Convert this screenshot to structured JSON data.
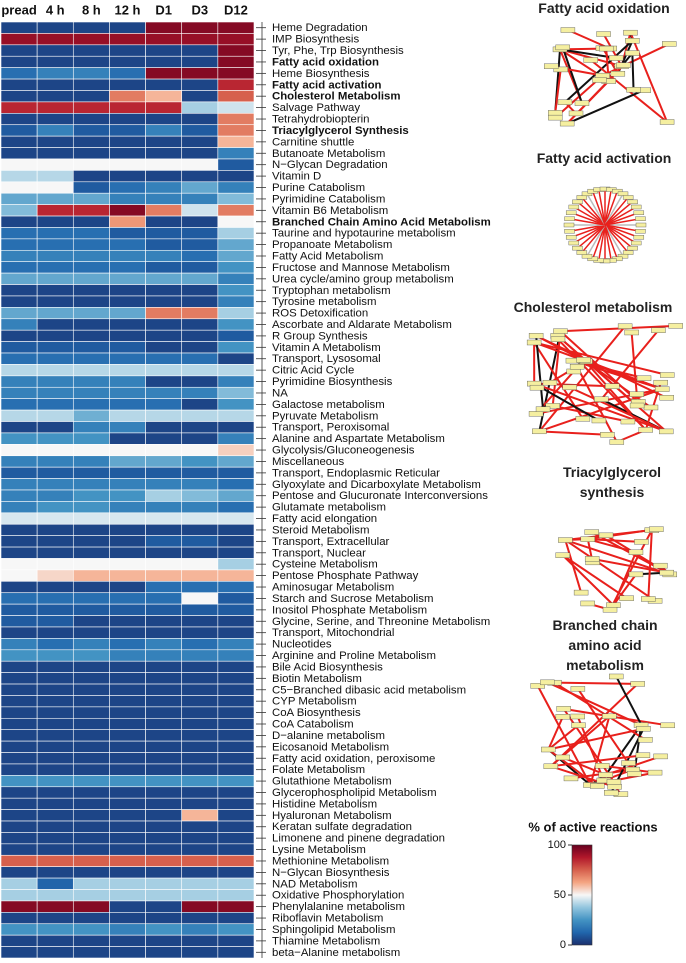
{
  "chart_data": {
    "type": "heatmap",
    "columns": [
      "pread",
      "4 h",
      "8 h",
      "12 h",
      "D1",
      "D3",
      "D12"
    ],
    "rows": [
      "Heme Degradation",
      "IMP Biosynthesis",
      "Tyr, Phe, Trp Biosynthesis",
      "Fatty acid oxidation",
      "Heme Biosynthesis",
      "Fatty acid activation",
      "Cholesterol Metabolism",
      "Salvage Pathway",
      "Tetrahydrobiopterin",
      "Triacylglycerol Synthesis",
      "Carnitine shuttle",
      "Butanoate Metabolism",
      "N−Glycan Degradation",
      "Vitamin D",
      "Purine Catabolism",
      "Pyrimidine Catabolism",
      "Vitamin B6 Metabolism",
      "Branched Chain Amino Acid Metabolism",
      "Taurine and hypotaurine metabolism",
      "Propanoate Metabolism",
      "Fatty Acid Metabolism",
      "Fructose and Mannose Metabolism",
      "Urea cycle/amino group metabolism",
      "Tryptophan metabolism",
      "Tyrosine metabolism",
      "ROS Detoxification",
      "Ascorbate and Aldarate Metabolism",
      "R Group Synthesis",
      "Vitamin A Metabolism",
      "Transport, Lysosomal",
      "Citric Acid Cycle",
      "Pyrimidine Biosynthesis",
      "NA",
      "Galactose metabolism",
      "Pyruvate Metabolism",
      "Transport, Peroxisomal",
      "Alanine and Aspartate Metabolism",
      "Glycolysis/Gluconeogenesis",
      "Miscellaneous",
      "Transport, Endoplasmic Reticular",
      "Glyoxylate and Dicarboxylate Metabolism",
      "Pentose and Glucuronate Interconversions",
      "Glutamate metabolism",
      "Fatty acid elongation",
      "Steroid Metabolism",
      "Transport, Extracellular",
      "Transport, Nuclear",
      "Cysteine Metabolism",
      "Pentose Phosphate Pathway",
      "Aminosugar Metabolism",
      "Starch and Sucrose Metabolism",
      "Inositol Phosphate Metabolism",
      "Glycine, Serine, and Threonine Metabolism",
      "Transport, Mitochondrial",
      "Nucleotides",
      "Arginine and Proline Metabolism",
      "Bile Acid Biosynthesis",
      "Biotin Metabolism",
      "C5−Branched dibasic acid metabolism",
      "CYP Metabolism",
      "CoA Biosynthesis",
      "CoA Catabolism",
      "D−alanine metabolism",
      "Eicosanoid Metabolism",
      "Fatty acid oxidation, peroxisome",
      "Folate Metabolism",
      "Glutathione Metabolism",
      "Glycerophospholipid Metabolism",
      "Histidine Metabolism",
      "Hyaluronan Metabolism",
      "Keratan sulfate degradation",
      "Limonene and pinene degradation",
      "Lysine Metabolism",
      "Methionine Metabolism",
      "N−Glycan Biosynthesis",
      "NAD Metabolism",
      "Oxidative Phosphorylation",
      "Phenylalanine metabolism",
      "Riboflavin Metabolism",
      "Sphingolipid Metabolism",
      "Thiamine Metabolism",
      "beta−Alanine metabolism"
    ],
    "bold_rows": [
      3,
      5,
      6,
      9,
      17
    ],
    "values": [
      [
        5,
        5,
        5,
        5,
        95,
        95,
        95
      ],
      [
        92,
        92,
        92,
        92,
        92,
        92,
        92
      ],
      [
        5,
        5,
        5,
        5,
        5,
        5,
        95
      ],
      [
        5,
        5,
        5,
        5,
        5,
        5,
        95
      ],
      [
        15,
        20,
        20,
        15,
        95,
        95,
        95
      ],
      [
        5,
        5,
        5,
        5,
        5,
        5,
        85
      ],
      [
        5,
        5,
        5,
        70,
        60,
        5,
        75
      ],
      [
        85,
        85,
        85,
        85,
        85,
        40,
        45
      ],
      [
        5,
        5,
        5,
        5,
        5,
        5,
        70
      ],
      [
        10,
        20,
        10,
        10,
        20,
        10,
        70
      ],
      [
        5,
        5,
        5,
        5,
        5,
        5,
        60
      ],
      [
        5,
        5,
        5,
        5,
        5,
        5,
        20
      ],
      [
        50,
        50,
        50,
        50,
        50,
        50,
        10
      ],
      [
        42,
        42,
        5,
        5,
        5,
        5,
        5
      ],
      [
        50,
        50,
        10,
        15,
        20,
        30,
        20
      ],
      [
        30,
        30,
        30,
        20,
        20,
        20,
        35
      ],
      [
        35,
        85,
        85,
        95,
        70,
        45,
        70
      ],
      [
        5,
        5,
        5,
        65,
        5,
        5,
        50
      ],
      [
        15,
        15,
        15,
        10,
        10,
        10,
        40
      ],
      [
        15,
        15,
        15,
        15,
        10,
        10,
        30
      ],
      [
        20,
        20,
        20,
        20,
        20,
        15,
        30
      ],
      [
        15,
        15,
        15,
        15,
        10,
        10,
        25
      ],
      [
        30,
        30,
        30,
        30,
        30,
        30,
        20
      ],
      [
        5,
        5,
        5,
        5,
        5,
        5,
        25
      ],
      [
        5,
        5,
        5,
        5,
        5,
        5,
        20
      ],
      [
        30,
        30,
        30,
        30,
        70,
        70,
        40
      ],
      [
        20,
        5,
        5,
        5,
        5,
        5,
        25
      ],
      [
        5,
        5,
        5,
        5,
        5,
        5,
        10
      ],
      [
        10,
        10,
        10,
        10,
        5,
        5,
        25
      ],
      [
        15,
        15,
        15,
        15,
        15,
        15,
        5
      ],
      [
        42,
        42,
        42,
        42,
        42,
        42,
        42
      ],
      [
        20,
        20,
        20,
        20,
        5,
        5,
        20
      ],
      [
        20,
        20,
        20,
        20,
        20,
        20,
        35
      ],
      [
        15,
        15,
        15,
        15,
        15,
        5,
        25
      ],
      [
        42,
        42,
        32,
        42,
        42,
        42,
        42
      ],
      [
        5,
        5,
        20,
        20,
        5,
        5,
        5
      ],
      [
        25,
        25,
        25,
        5,
        5,
        5,
        20
      ],
      [
        50,
        50,
        50,
        50,
        50,
        50,
        56
      ],
      [
        20,
        20,
        20,
        30,
        30,
        25,
        30
      ],
      [
        10,
        10,
        10,
        10,
        10,
        10,
        10
      ],
      [
        20,
        20,
        20,
        20,
        20,
        20,
        15
      ],
      [
        20,
        20,
        25,
        25,
        40,
        35,
        30
      ],
      [
        20,
        25,
        25,
        20,
        20,
        20,
        15
      ],
      [
        46,
        46,
        46,
        46,
        46,
        46,
        46
      ],
      [
        5,
        5,
        5,
        5,
        5,
        5,
        5
      ],
      [
        5,
        5,
        5,
        5,
        10,
        10,
        5
      ],
      [
        5,
        5,
        5,
        5,
        5,
        5,
        5
      ],
      [
        50,
        50,
        50,
        50,
        50,
        50,
        40
      ],
      [
        50,
        55,
        60,
        60,
        60,
        60,
        60
      ],
      [
        5,
        5,
        5,
        5,
        15,
        15,
        15
      ],
      [
        15,
        15,
        15,
        15,
        15,
        50,
        10
      ],
      [
        10,
        10,
        10,
        10,
        10,
        10,
        10
      ],
      [
        10,
        10,
        5,
        5,
        5,
        5,
        5
      ],
      [
        5,
        5,
        5,
        5,
        5,
        5,
        5
      ],
      [
        20,
        15,
        20,
        15,
        20,
        15,
        20
      ],
      [
        25,
        25,
        25,
        20,
        20,
        20,
        20
      ],
      [
        5,
        5,
        5,
        5,
        5,
        5,
        5
      ],
      [
        5,
        5,
        5,
        5,
        5,
        5,
        5
      ],
      [
        5,
        5,
        5,
        5,
        5,
        5,
        5
      ],
      [
        5,
        5,
        5,
        5,
        5,
        5,
        5
      ],
      [
        5,
        5,
        5,
        5,
        5,
        5,
        5
      ],
      [
        5,
        5,
        5,
        5,
        5,
        5,
        5
      ],
      [
        5,
        5,
        5,
        5,
        5,
        5,
        5
      ],
      [
        5,
        5,
        5,
        5,
        5,
        5,
        5
      ],
      [
        5,
        5,
        5,
        5,
        5,
        5,
        5
      ],
      [
        5,
        5,
        5,
        5,
        5,
        5,
        5
      ],
      [
        25,
        25,
        25,
        25,
        25,
        25,
        25
      ],
      [
        5,
        5,
        5,
        5,
        5,
        5,
        5
      ],
      [
        5,
        5,
        5,
        5,
        5,
        5,
        5
      ],
      [
        5,
        5,
        5,
        5,
        5,
        60,
        5
      ],
      [
        5,
        5,
        5,
        5,
        5,
        5,
        5
      ],
      [
        5,
        5,
        5,
        5,
        5,
        5,
        5
      ],
      [
        5,
        5,
        5,
        5,
        5,
        5,
        5
      ],
      [
        75,
        75,
        75,
        75,
        75,
        75,
        75
      ],
      [
        5,
        5,
        5,
        5,
        5,
        5,
        5
      ],
      [
        40,
        12,
        40,
        40,
        40,
        40,
        40
      ],
      [
        40,
        40,
        40,
        40,
        40,
        40,
        40
      ],
      [
        95,
        95,
        95,
        5,
        5,
        95,
        95
      ],
      [
        5,
        5,
        5,
        5,
        5,
        5,
        5
      ],
      [
        25,
        25,
        25,
        20,
        25,
        20,
        25
      ],
      [
        5,
        5,
        5,
        5,
        5,
        5,
        5
      ],
      [
        5,
        5,
        5,
        5,
        5,
        5,
        5
      ]
    ],
    "colors": [
      "#1b2f6e",
      "#2166ac",
      "#4393c3",
      "#92c5de",
      "#f7f7f7",
      "#f4a582",
      "#d6604d",
      "#b2182b",
      "#67001f"
    ],
    "colorbar": {
      "title": "% of active reactions",
      "clim": [
        0,
        100
      ],
      "ticks": [
        0,
        50,
        100
      ]
    }
  },
  "panels": [
    {
      "title": "Fatty acid oxidation"
    },
    {
      "title": "Fatty acid activation"
    },
    {
      "title": "Cholesterol metabolism"
    },
    {
      "title": "Triacylglycerol synthesis"
    },
    {
      "title": "Branched chain amino acid metabolism"
    }
  ]
}
